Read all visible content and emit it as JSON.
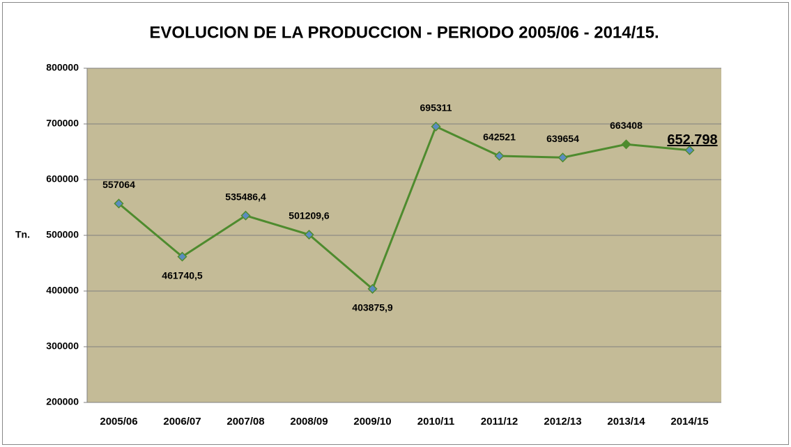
{
  "chart_data": {
    "type": "line",
    "title": "EVOLUCION DE LA PRODUCCION - PERIODO 2005/06 - 2014/15.",
    "y_label": "Tn.",
    "categories": [
      "2005/06",
      "2006/07",
      "2007/08",
      "2008/09",
      "2009/10",
      "2010/11",
      "2011/12",
      "2012/13",
      "2013/14",
      "2014/15"
    ],
    "series": [
      {
        "color": "#4e8b2e",
        "marker_colors": [
          "#5b8cc0",
          "#5b8cc0",
          "#5b8cc0",
          "#5b8cc0",
          "#5b8cc0",
          "#5b8cc0",
          "#5b8cc0",
          "#5b8cc0",
          "#4e8b2e",
          "#5b8cc0"
        ],
        "values": [
          557064,
          461740.5,
          535486.4,
          501209.6,
          403875.9,
          695311,
          642521,
          639654,
          663408,
          652798
        ],
        "value_labels": [
          "557064",
          "461740,5",
          "535486,4",
          "501209,6",
          "403875,9",
          "695311",
          "642521",
          "639654",
          "663408",
          "652.798"
        ]
      }
    ],
    "ylim": [
      200000,
      800000
    ],
    "yticks": [
      200000,
      300000,
      400000,
      500000,
      600000,
      700000,
      800000
    ],
    "grid": true,
    "plot_background": "#c4bb97"
  }
}
